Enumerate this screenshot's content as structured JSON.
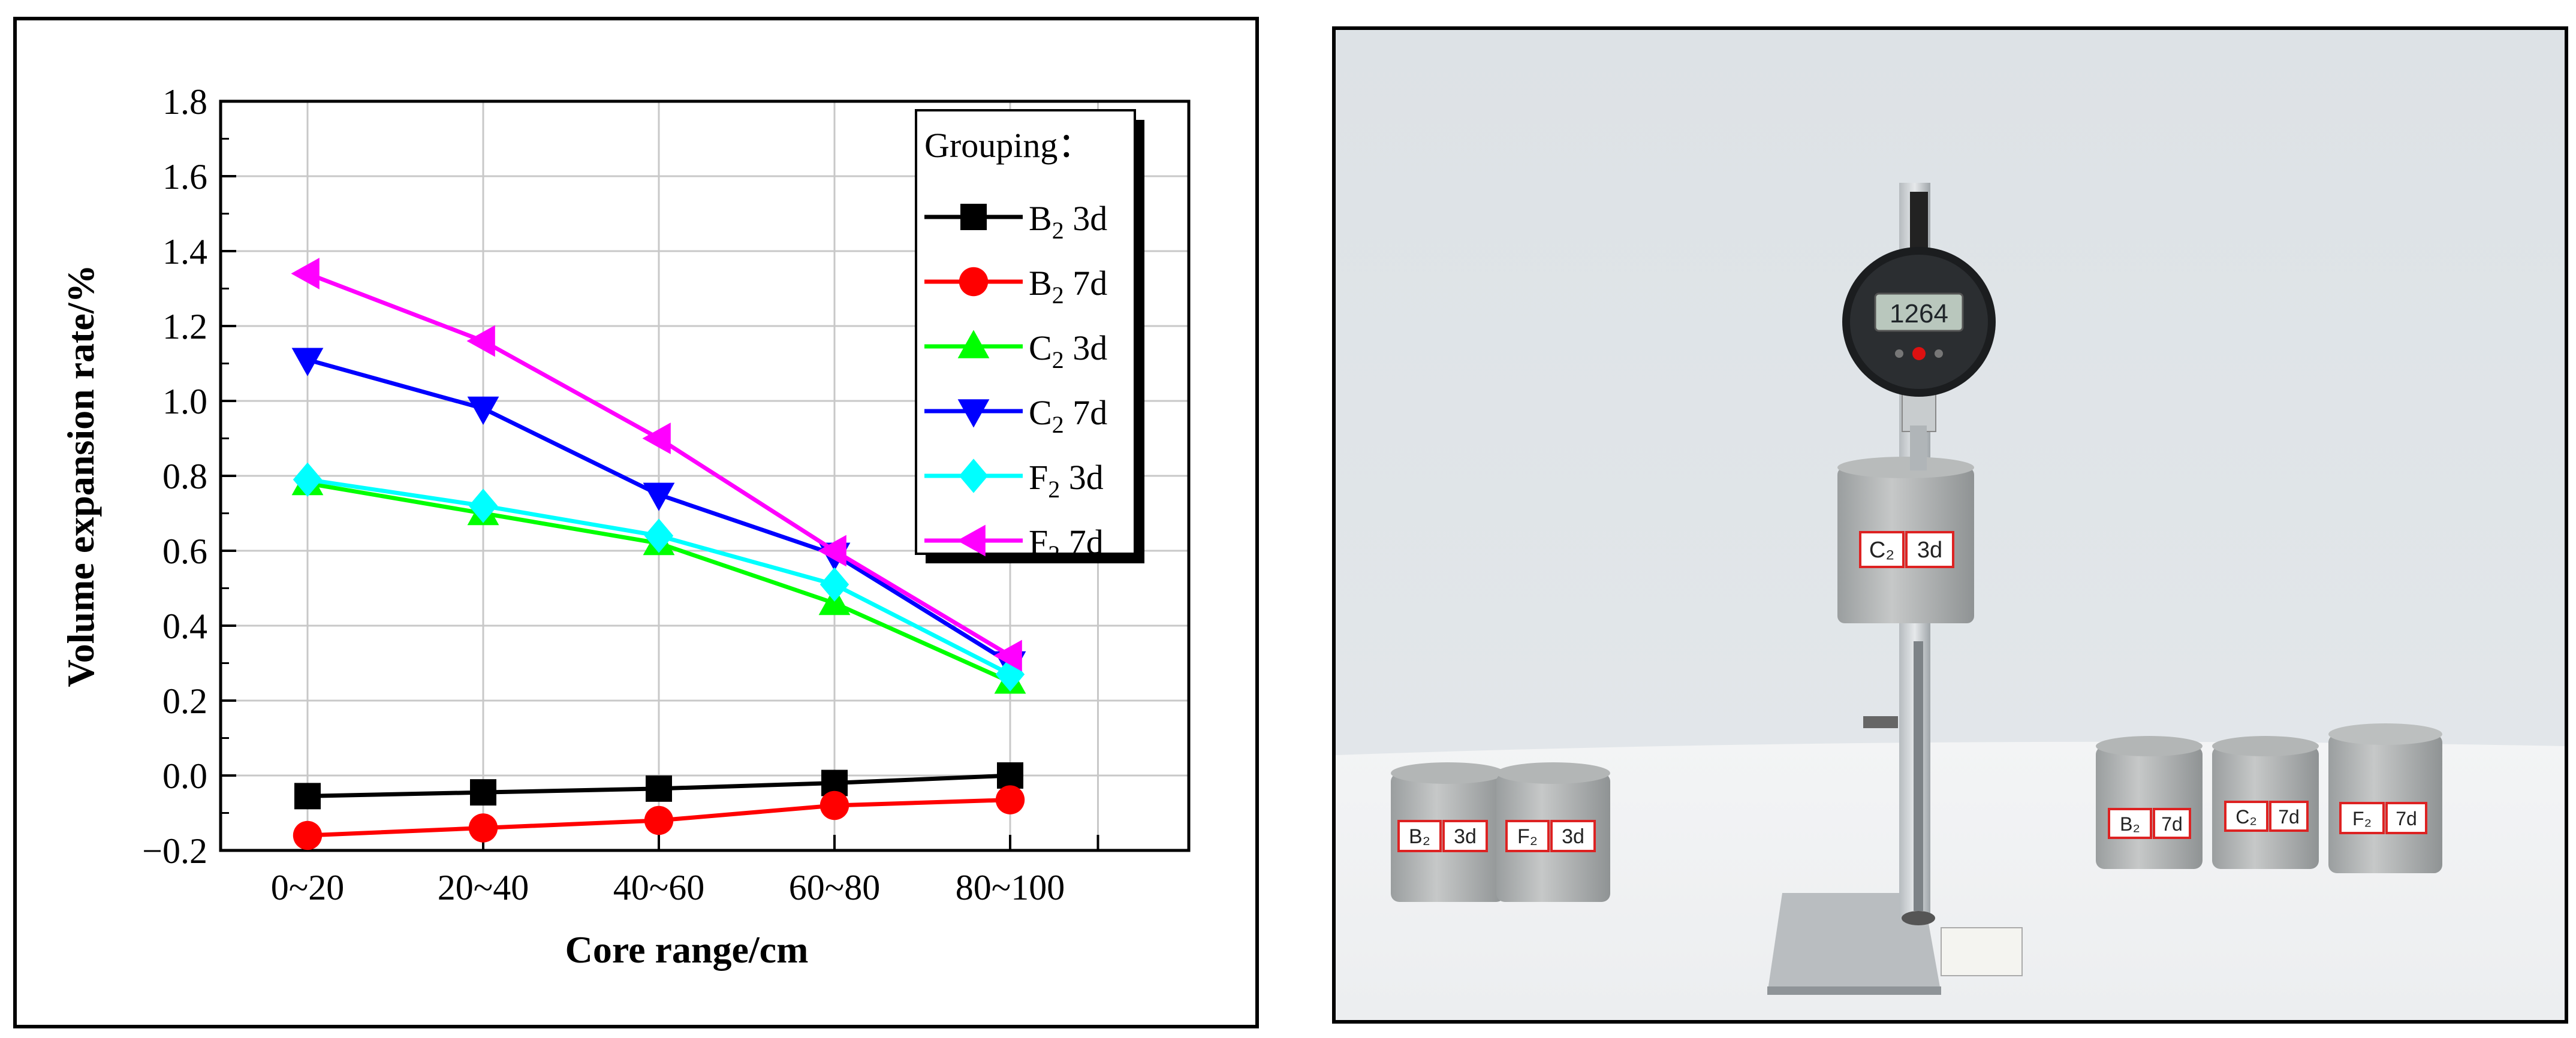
{
  "chart_data": {
    "type": "line",
    "xlabel": "Core range/cm",
    "ylabel": "Volume expansion rate/%",
    "categories": [
      "0~20",
      "20~40",
      "40~60",
      "60~80",
      "80~100"
    ],
    "ylim": [
      -0.2,
      1.8
    ],
    "yticks": [
      "−0.2",
      "0.0",
      "0.2",
      "0.4",
      "0.6",
      "0.8",
      "1.0",
      "1.2",
      "1.4",
      "1.6",
      "1.8"
    ],
    "grid": true,
    "legend": {
      "title": "Grouping：",
      "placement": "top-right"
    },
    "series": [
      {
        "name": "B",
        "sub": "2",
        "age": " 3d",
        "color": "#000000",
        "marker": "square",
        "values": [
          -0.055,
          -0.045,
          -0.035,
          -0.02,
          0.0
        ]
      },
      {
        "name": "B",
        "sub": "2",
        "age": " 7d",
        "color": "#ff0000",
        "marker": "circle",
        "values": [
          -0.16,
          -0.14,
          -0.12,
          -0.08,
          -0.065
        ]
      },
      {
        "name": "C",
        "sub": "2",
        "age": " 3d",
        "color": "#00ff00",
        "marker": "triangle-up",
        "values": [
          0.78,
          0.7,
          0.62,
          0.46,
          0.25
        ]
      },
      {
        "name": "C",
        "sub": "2",
        "age": " 7d",
        "color": "#0000ff",
        "marker": "triangle-down",
        "values": [
          1.11,
          0.98,
          0.75,
          0.59,
          0.3
        ]
      },
      {
        "name": "F",
        "sub": "2",
        "age": " 3d",
        "color": "#00ffff",
        "marker": "diamond",
        "values": [
          0.79,
          0.72,
          0.64,
          0.51,
          0.27
        ]
      },
      {
        "name": "F",
        "sub": "2",
        "age": " 7d",
        "color": "#ff00ff",
        "marker": "triangle-left",
        "values": [
          1.34,
          1.16,
          0.9,
          0.6,
          0.32
        ]
      }
    ]
  },
  "photo": {
    "gauge_reading": "1264",
    "labels": [
      "C₂ 3d",
      "B₂ 3d",
      "F₂ 3d",
      "B₂ 7d",
      "C₂ 7d",
      "F₂ 7d"
    ]
  }
}
